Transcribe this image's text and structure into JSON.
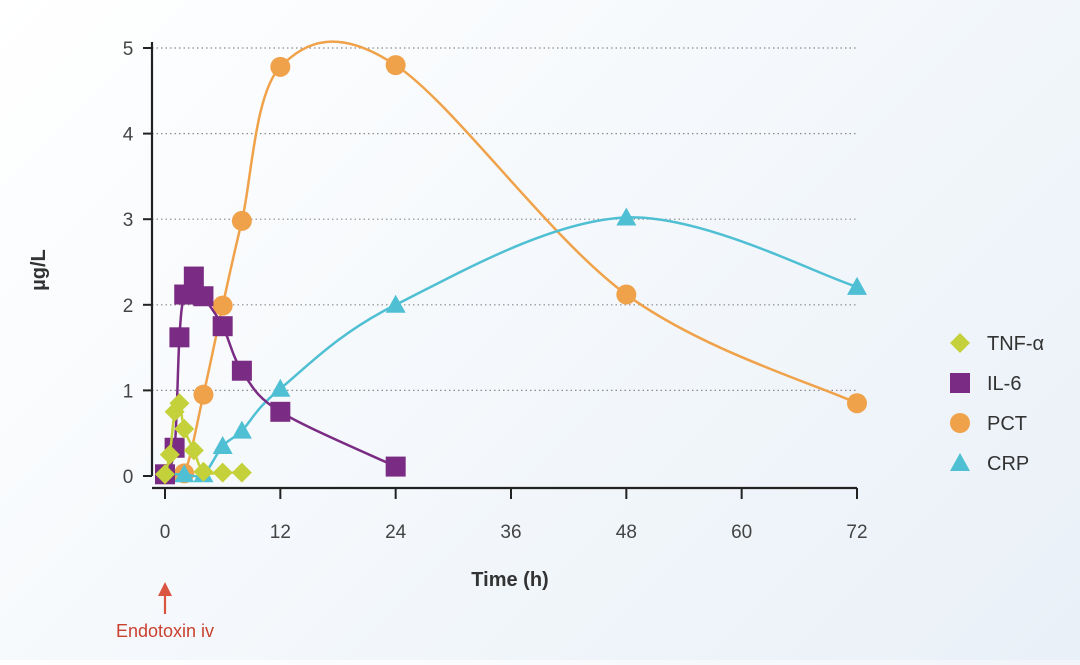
{
  "chart_data": {
    "type": "line",
    "xlabel": "Time (h)",
    "ylabel": "µg/L",
    "xlim": [
      0,
      72
    ],
    "ylim": [
      0,
      5
    ],
    "x_ticks": [
      "0",
      "12",
      "24",
      "36",
      "48",
      "60",
      "72"
    ],
    "x_tick_values": [
      0,
      12,
      24,
      36,
      48,
      60,
      72
    ],
    "y_ticks": [
      "0",
      "1",
      "2",
      "3",
      "4",
      "5"
    ],
    "y_tick_values": [
      0,
      1,
      2,
      3,
      4,
      5
    ],
    "grid": "horizontal dotted",
    "legend_position": "right",
    "annotation": {
      "text": "Endotoxin iv",
      "x": 0,
      "color": "#d9553f"
    },
    "series": [
      {
        "name": "TNF-α",
        "color": "#c5d13a",
        "marker": "diamond",
        "points": [
          [
            0,
            0.02
          ],
          [
            0.5,
            0.25
          ],
          [
            1,
            0.75
          ],
          [
            1.5,
            0.85
          ],
          [
            2,
            0.55
          ],
          [
            3,
            0.3
          ],
          [
            4,
            0.05
          ],
          [
            6,
            0.04
          ],
          [
            8,
            0.04
          ]
        ]
      },
      {
        "name": "IL-6",
        "color": "#7a2b83",
        "marker": "square",
        "points": [
          [
            0,
            0.02
          ],
          [
            1,
            0.33
          ],
          [
            1.5,
            1.62
          ],
          [
            2,
            2.12
          ],
          [
            3,
            2.33
          ],
          [
            4,
            2.1
          ],
          [
            6,
            1.75
          ],
          [
            8,
            1.23
          ],
          [
            12,
            0.75
          ],
          [
            24,
            0.11
          ]
        ]
      },
      {
        "name": "PCT",
        "color": "#f0a24a",
        "marker": "circle",
        "points": [
          [
            0,
            0.02
          ],
          [
            2,
            0.03
          ],
          [
            4,
            0.95
          ],
          [
            6,
            1.99
          ],
          [
            8,
            2.98
          ],
          [
            12,
            4.78
          ],
          [
            24,
            4.8
          ],
          [
            48,
            2.12
          ],
          [
            72,
            0.85
          ]
        ]
      },
      {
        "name": "CRP",
        "color": "#4fbfd3",
        "marker": "triangle",
        "points": [
          [
            0,
            0.02
          ],
          [
            2,
            0.02
          ],
          [
            4,
            0.02
          ],
          [
            6,
            0.35
          ],
          [
            8,
            0.53
          ],
          [
            12,
            1.02
          ],
          [
            24,
            2.0
          ],
          [
            48,
            3.02
          ],
          [
            72,
            2.21
          ]
        ]
      }
    ]
  }
}
